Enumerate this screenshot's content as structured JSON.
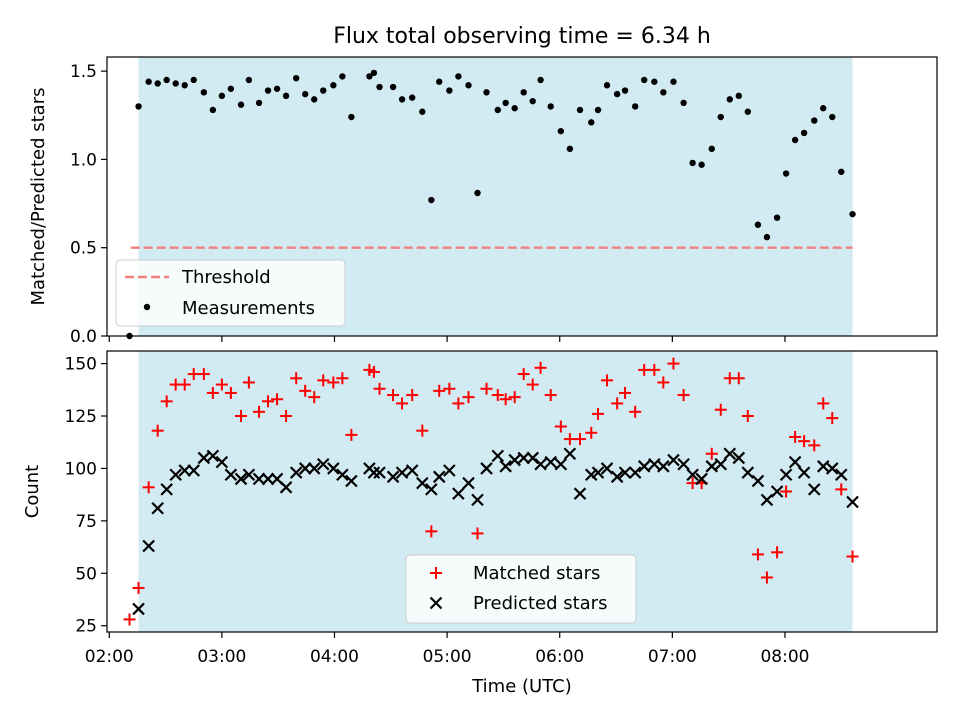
{
  "title": "Flux total observing time = 6.34 h",
  "colors": {
    "shade": "#add8e6",
    "threshold": "#f08080",
    "measurement": "#000000",
    "matched": "#ff0000",
    "predicted": "#000000"
  },
  "chart_data": [
    {
      "type": "scatter",
      "panel": "top",
      "ylabel": "Matched/Predicted stars",
      "ylim": [
        0,
        1.58
      ],
      "yticks": [
        0,
        0.5,
        1.0,
        1.5
      ],
      "ytick_labels": [
        "0.0",
        "0.5",
        "1.0",
        "1.5"
      ],
      "xlim": [
        1.98,
        9.35
      ],
      "observing_window_hours": [
        2.26,
        8.6
      ],
      "threshold": {
        "value": 0.5,
        "x_start": 2.19,
        "x_end": 8.6,
        "label": "Threshold"
      },
      "legend": {
        "position": "lower-left",
        "entries": [
          "Threshold",
          "Measurements"
        ]
      },
      "series": [
        {
          "name": "Measurements",
          "points": [
            [
              2.18,
              0.0
            ],
            [
              2.26,
              1.3
            ],
            [
              2.35,
              1.44
            ],
            [
              2.43,
              1.43
            ],
            [
              2.51,
              1.45
            ],
            [
              2.59,
              1.43
            ],
            [
              2.67,
              1.42
            ],
            [
              2.75,
              1.45
            ],
            [
              2.84,
              1.38
            ],
            [
              2.92,
              1.28
            ],
            [
              3.0,
              1.36
            ],
            [
              3.08,
              1.4
            ],
            [
              3.17,
              1.31
            ],
            [
              3.24,
              1.45
            ],
            [
              3.33,
              1.32
            ],
            [
              3.41,
              1.39
            ],
            [
              3.49,
              1.4
            ],
            [
              3.57,
              1.36
            ],
            [
              3.66,
              1.46
            ],
            [
              3.74,
              1.37
            ],
            [
              3.82,
              1.34
            ],
            [
              3.9,
              1.39
            ],
            [
              3.99,
              1.42
            ],
            [
              4.07,
              1.47
            ],
            [
              4.15,
              1.24
            ],
            [
              4.31,
              1.47
            ],
            [
              4.35,
              1.49
            ],
            [
              4.4,
              1.41
            ],
            [
              4.52,
              1.41
            ],
            [
              4.6,
              1.34
            ],
            [
              4.69,
              1.35
            ],
            [
              4.78,
              1.27
            ],
            [
              4.86,
              0.77
            ],
            [
              4.93,
              1.44
            ],
            [
              5.02,
              1.39
            ],
            [
              5.1,
              1.47
            ],
            [
              5.19,
              1.42
            ],
            [
              5.27,
              0.81
            ],
            [
              5.35,
              1.38
            ],
            [
              5.45,
              1.28
            ],
            [
              5.52,
              1.32
            ],
            [
              5.6,
              1.29
            ],
            [
              5.68,
              1.38
            ],
            [
              5.76,
              1.33
            ],
            [
              5.83,
              1.45
            ],
            [
              5.92,
              1.3
            ],
            [
              6.01,
              1.16
            ],
            [
              6.09,
              1.06
            ],
            [
              6.18,
              1.28
            ],
            [
              6.28,
              1.21
            ],
            [
              6.34,
              1.28
            ],
            [
              6.42,
              1.42
            ],
            [
              6.51,
              1.37
            ],
            [
              6.58,
              1.39
            ],
            [
              6.67,
              1.3
            ],
            [
              6.75,
              1.45
            ],
            [
              6.84,
              1.44
            ],
            [
              6.92,
              1.38
            ],
            [
              7.01,
              1.44
            ],
            [
              7.1,
              1.32
            ],
            [
              7.18,
              0.98
            ],
            [
              7.26,
              0.97
            ],
            [
              7.35,
              1.06
            ],
            [
              7.43,
              1.24
            ],
            [
              7.51,
              1.34
            ],
            [
              7.59,
              1.36
            ],
            [
              7.67,
              1.27
            ],
            [
              7.76,
              0.63
            ],
            [
              7.84,
              0.56
            ],
            [
              7.93,
              0.67
            ],
            [
              8.01,
              0.92
            ],
            [
              8.09,
              1.11
            ],
            [
              8.17,
              1.15
            ],
            [
              8.26,
              1.22
            ],
            [
              8.34,
              1.29
            ],
            [
              8.42,
              1.24
            ],
            [
              8.5,
              0.93
            ],
            [
              8.6,
              0.69
            ]
          ]
        }
      ]
    },
    {
      "type": "scatter",
      "panel": "bottom",
      "ylabel": "Count",
      "xlabel": "Time (UTC)",
      "ylim": [
        22,
        156
      ],
      "yticks": [
        25,
        50,
        75,
        100,
        125,
        150
      ],
      "ytick_labels": [
        "25",
        "50",
        "75",
        "100",
        "125",
        "150"
      ],
      "xlim": [
        1.98,
        9.35
      ],
      "xticks": [
        2,
        3,
        4,
        5,
        6,
        7,
        8
      ],
      "xtick_labels": [
        "02:00",
        "03:00",
        "04:00",
        "05:00",
        "06:00",
        "07:00",
        "08:00"
      ],
      "observing_window_hours": [
        2.26,
        8.6
      ],
      "legend": {
        "position": "lower-center",
        "entries": [
          "Matched stars",
          "Predicted stars"
        ]
      },
      "series": [
        {
          "name": "Matched stars",
          "points": [
            [
              2.18,
              28
            ],
            [
              2.26,
              43
            ],
            [
              2.35,
              91
            ],
            [
              2.43,
              118
            ],
            [
              2.51,
              132
            ],
            [
              2.59,
              140
            ],
            [
              2.67,
              140
            ],
            [
              2.75,
              145
            ],
            [
              2.84,
              145
            ],
            [
              2.92,
              136
            ],
            [
              3.0,
              140
            ],
            [
              3.08,
              136
            ],
            [
              3.17,
              125
            ],
            [
              3.24,
              141
            ],
            [
              3.33,
              127
            ],
            [
              3.41,
              132
            ],
            [
              3.49,
              133
            ],
            [
              3.57,
              125
            ],
            [
              3.66,
              143
            ],
            [
              3.74,
              137
            ],
            [
              3.82,
              134
            ],
            [
              3.9,
              142
            ],
            [
              3.99,
              141
            ],
            [
              4.07,
              143
            ],
            [
              4.15,
              116
            ],
            [
              4.31,
              147
            ],
            [
              4.35,
              146
            ],
            [
              4.4,
              138
            ],
            [
              4.52,
              135
            ],
            [
              4.6,
              131
            ],
            [
              4.69,
              135
            ],
            [
              4.78,
              118
            ],
            [
              4.86,
              70
            ],
            [
              4.93,
              137
            ],
            [
              5.02,
              138
            ],
            [
              5.1,
              131
            ],
            [
              5.19,
              134
            ],
            [
              5.27,
              69
            ],
            [
              5.35,
              138
            ],
            [
              5.45,
              135
            ],
            [
              5.52,
              133
            ],
            [
              5.6,
              134
            ],
            [
              5.68,
              145
            ],
            [
              5.76,
              140
            ],
            [
              5.83,
              148
            ],
            [
              5.92,
              135
            ],
            [
              6.01,
              120
            ],
            [
              6.09,
              114
            ],
            [
              6.18,
              114
            ],
            [
              6.28,
              117
            ],
            [
              6.34,
              126
            ],
            [
              6.42,
              142
            ],
            [
              6.51,
              131
            ],
            [
              6.58,
              136
            ],
            [
              6.67,
              127
            ],
            [
              6.75,
              147
            ],
            [
              6.84,
              147
            ],
            [
              6.92,
              141
            ],
            [
              7.01,
              150
            ],
            [
              7.1,
              135
            ],
            [
              7.18,
              93
            ],
            [
              7.26,
              93
            ],
            [
              7.35,
              107
            ],
            [
              7.43,
              128
            ],
            [
              7.51,
              143
            ],
            [
              7.59,
              143
            ],
            [
              7.67,
              125
            ],
            [
              7.76,
              59
            ],
            [
              7.84,
              48
            ],
            [
              7.93,
              60
            ],
            [
              8.01,
              89
            ],
            [
              8.09,
              115
            ],
            [
              8.17,
              113
            ],
            [
              8.26,
              111
            ],
            [
              8.34,
              131
            ],
            [
              8.42,
              124
            ],
            [
              8.5,
              90
            ],
            [
              8.6,
              58
            ]
          ]
        },
        {
          "name": "Predicted stars",
          "points": [
            [
              2.26,
              33
            ],
            [
              2.35,
              63
            ],
            [
              2.43,
              81
            ],
            [
              2.51,
              90
            ],
            [
              2.59,
              97
            ],
            [
              2.67,
              99
            ],
            [
              2.75,
              99
            ],
            [
              2.84,
              105
            ],
            [
              2.92,
              106
            ],
            [
              3.0,
              103
            ],
            [
              3.08,
              97
            ],
            [
              3.17,
              95
            ],
            [
              3.24,
              97
            ],
            [
              3.33,
              95
            ],
            [
              3.41,
              95
            ],
            [
              3.49,
              95
            ],
            [
              3.57,
              91
            ],
            [
              3.66,
              98
            ],
            [
              3.74,
              100
            ],
            [
              3.82,
              100
            ],
            [
              3.9,
              102
            ],
            [
              3.99,
              100
            ],
            [
              4.07,
              97
            ],
            [
              4.15,
              94
            ],
            [
              4.31,
              100
            ],
            [
              4.35,
              98
            ],
            [
              4.4,
              98
            ],
            [
              4.52,
              96
            ],
            [
              4.6,
              98
            ],
            [
              4.69,
              99
            ],
            [
              4.78,
              93
            ],
            [
              4.86,
              90
            ],
            [
              4.93,
              96
            ],
            [
              5.02,
              99
            ],
            [
              5.1,
              88
            ],
            [
              5.19,
              93
            ],
            [
              5.27,
              85
            ],
            [
              5.35,
              100
            ],
            [
              5.45,
              106
            ],
            [
              5.52,
              101
            ],
            [
              5.6,
              104
            ],
            [
              5.68,
              105
            ],
            [
              5.76,
              105
            ],
            [
              5.83,
              102
            ],
            [
              5.92,
              103
            ],
            [
              6.01,
              102
            ],
            [
              6.09,
              107
            ],
            [
              6.18,
              88
            ],
            [
              6.28,
              97
            ],
            [
              6.34,
              98
            ],
            [
              6.42,
              100
            ],
            [
              6.51,
              96
            ],
            [
              6.58,
              98
            ],
            [
              6.67,
              98
            ],
            [
              6.75,
              101
            ],
            [
              6.84,
              102
            ],
            [
              6.92,
              101
            ],
            [
              7.01,
              104
            ],
            [
              7.1,
              102
            ],
            [
              7.18,
              97
            ],
            [
              7.26,
              95
            ],
            [
              7.35,
              101
            ],
            [
              7.43,
              102
            ],
            [
              7.51,
              107
            ],
            [
              7.59,
              105
            ],
            [
              7.67,
              98
            ],
            [
              7.76,
              94
            ],
            [
              7.84,
              85
            ],
            [
              7.93,
              89
            ],
            [
              8.01,
              97
            ],
            [
              8.09,
              103
            ],
            [
              8.17,
              98
            ],
            [
              8.26,
              90
            ],
            [
              8.34,
              101
            ],
            [
              8.42,
              100
            ],
            [
              8.5,
              97
            ],
            [
              8.6,
              84
            ]
          ]
        }
      ]
    }
  ]
}
